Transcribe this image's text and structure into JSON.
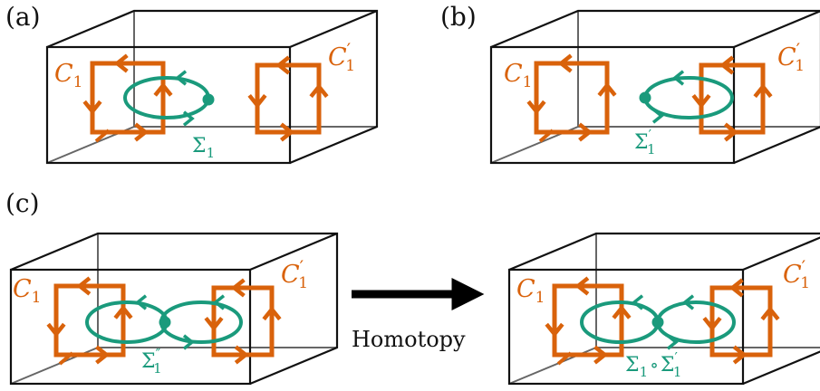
{
  "colors": {
    "box": "#111111",
    "box_hidden": "#666666",
    "orange": "#d9620b",
    "green": "#1a9a7c",
    "arrow": "#000000"
  },
  "panels": [
    {
      "label": "(a)",
      "c_left": "C",
      "c_left_sub": "1",
      "c_right": "C",
      "c_right_sub": "1",
      "c_right_sup": "′",
      "sigma": "Σ",
      "sigma_sub": "1",
      "sigma_sup": ""
    },
    {
      "label": "(b)",
      "c_left": "C",
      "c_left_sub": "1",
      "c_right": "C",
      "c_right_sub": "1",
      "c_right_sup": "′",
      "sigma": "Σ",
      "sigma_sub": "1",
      "sigma_sup": "′"
    },
    {
      "label": "(c)",
      "c_left": "C",
      "c_left_sub": "1",
      "c_right": "C",
      "c_right_sub": "1",
      "c_right_sup": "′",
      "sigma": "Σ",
      "sigma_sub": "1",
      "sigma_sup": "″"
    },
    {
      "label": "",
      "c_left": "C",
      "c_left_sub": "1",
      "c_right": "C",
      "c_right_sub": "1",
      "c_right_sup": "′",
      "sigma": "Σ",
      "sigma_sub": "1",
      "sigma_sup": "",
      "composition": "∘",
      "sigma2": "Σ",
      "sigma2_sub": "1",
      "sigma2_sup": "′"
    }
  ],
  "homotopy_label": "Homotopy"
}
